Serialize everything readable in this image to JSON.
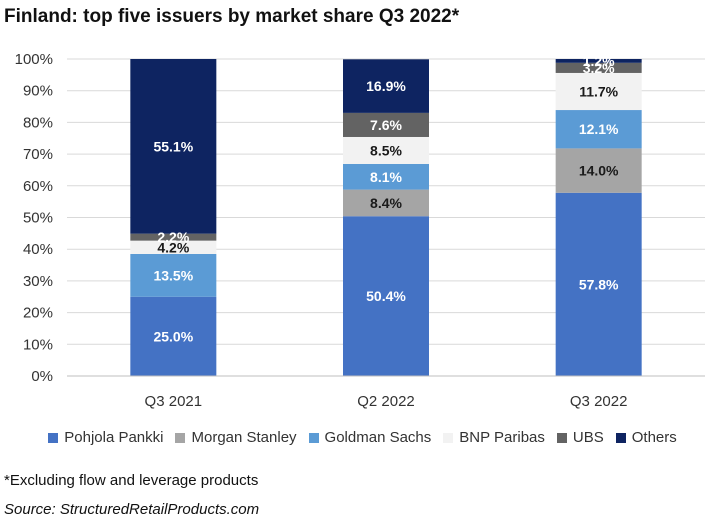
{
  "title": "Finland: top five issuers by market share Q3 2022*",
  "footnote": "*Excluding flow and leverage products",
  "source": "Source: StructuredRetailProducts.com",
  "chart_data": {
    "type": "bar",
    "stacked": true,
    "categories": [
      "Q3 2021",
      "Q2 2022",
      "Q3 2022"
    ],
    "ylim": [
      0,
      100
    ],
    "y_ticks": [
      "0%",
      "10%",
      "20%",
      "30%",
      "40%",
      "50%",
      "60%",
      "70%",
      "80%",
      "90%",
      "100%"
    ],
    "grid": true,
    "legend_position": "bottom",
    "series": [
      {
        "name": "Pohjola Pankki",
        "color": "#4472c4",
        "label_color": "#ffffff",
        "values": [
          25.0,
          50.4,
          57.8
        ],
        "labels": [
          "25.0%",
          "50.4%",
          "57.8%"
        ]
      },
      {
        "name": "Morgan Stanley",
        "color": "#a5a5a5",
        "label_color": "#1a1a1a",
        "values": [
          0,
          8.4,
          14.0
        ],
        "labels": [
          "",
          "8.4%",
          "14.0%"
        ]
      },
      {
        "name": "Goldman Sachs",
        "color": "#5b9bd5",
        "label_color": "#ffffff",
        "values": [
          13.5,
          8.1,
          12.1
        ],
        "labels": [
          "13.5%",
          "8.1%",
          "12.1%"
        ]
      },
      {
        "name": "BNP Paribas",
        "color": "#f2f2f2",
        "label_color": "#1a1a1a",
        "values": [
          4.2,
          8.5,
          11.7
        ],
        "labels": [
          "4.2%",
          "8.5%",
          "11.7%"
        ]
      },
      {
        "name": "UBS",
        "color": "#636363",
        "label_color": "#ffffff",
        "values": [
          2.2,
          7.6,
          3.2
        ],
        "labels": [
          "2.2%",
          "7.6%",
          "3.2%"
        ]
      },
      {
        "name": "Others",
        "color": "#0e2461",
        "label_color": "#ffffff",
        "values": [
          55.1,
          16.9,
          1.2
        ],
        "labels": [
          "55.1%",
          "16.9%",
          "1.2%"
        ]
      }
    ]
  }
}
